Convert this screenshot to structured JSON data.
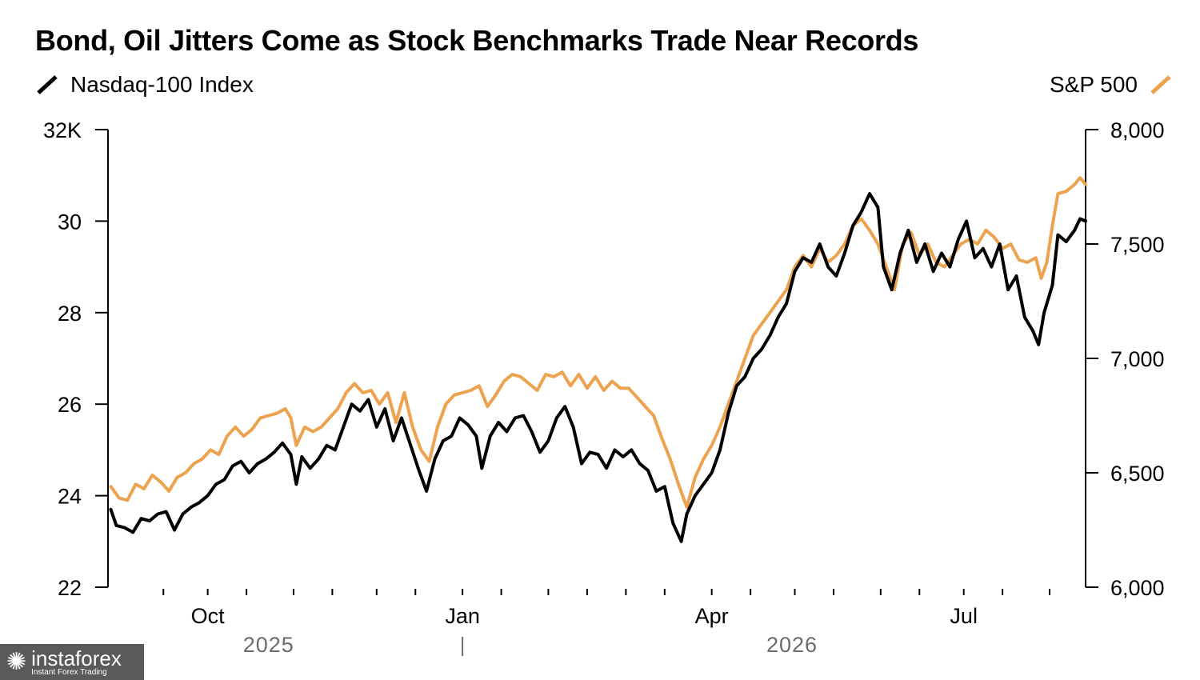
{
  "chart_data": {
    "type": "line",
    "title": "Bond, Oil Jitters Come as Stock Benchmarks Trade Near Records",
    "legend": {
      "placement": "top",
      "left_entry": "Nasdaq-100 Index",
      "right_entry": "S&P 500"
    },
    "x_ticks": [
      {
        "date": "2025-10-01",
        "label": "Oct"
      },
      {
        "date": "2026-01-01",
        "label": "Jan"
      },
      {
        "date": "2026-04-01",
        "label": "Apr"
      },
      {
        "date": "2026-07-01",
        "label": "Jul"
      }
    ],
    "x_minor_ticks": [
      "2025-09-15",
      "2025-10-01",
      "2025-10-15",
      "2025-11-01",
      "2025-11-15",
      "2025-12-01",
      "2025-12-15",
      "2026-01-01",
      "2026-01-15",
      "2026-02-01",
      "2026-02-15",
      "2026-03-01",
      "2026-03-15",
      "2026-04-01",
      "2026-04-15",
      "2026-05-01",
      "2026-05-15",
      "2026-06-01",
      "2026-06-15",
      "2026-07-01",
      "2026-07-15",
      "2026-08-01"
    ],
    "year_labels": [
      {
        "date": "2025-10-23",
        "label": "2025"
      },
      {
        "date": "2026-04-30",
        "label": "2026"
      }
    ],
    "year_divider": "2026-01-01",
    "xlim": [
      "2025-08-26",
      "2026-08-14"
    ],
    "left_axis": {
      "series": "Nasdaq-100 Index",
      "ylim": [
        22,
        32
      ],
      "ticks": [
        22,
        24,
        26,
        28,
        30,
        32
      ],
      "tick_labels": [
        "22",
        "24",
        "26",
        "28",
        "30",
        "32K"
      ],
      "unit": "thousands"
    },
    "right_axis": {
      "series": "S&P 500",
      "ylim": [
        6000,
        8000
      ],
      "ticks": [
        6000,
        6500,
        7000,
        7500,
        8000
      ],
      "tick_labels": [
        "6,000",
        "6,500",
        "7,000",
        "7,500",
        "8,000"
      ]
    },
    "grid": false,
    "series": [
      {
        "name": "Nasdaq-100 Index",
        "axis": "left",
        "color": "#000000",
        "points": [
          [
            "2025-08-27",
            23.7
          ],
          [
            "2025-08-29",
            23.35
          ],
          [
            "2025-09-01",
            23.3
          ],
          [
            "2025-09-04",
            23.2
          ],
          [
            "2025-09-07",
            23.5
          ],
          [
            "2025-09-10",
            23.45
          ],
          [
            "2025-09-13",
            23.6
          ],
          [
            "2025-09-16",
            23.65
          ],
          [
            "2025-09-19",
            23.25
          ],
          [
            "2025-09-22",
            23.6
          ],
          [
            "2025-09-25",
            23.75
          ],
          [
            "2025-09-28",
            23.85
          ],
          [
            "2025-10-01",
            24.0
          ],
          [
            "2025-10-04",
            24.25
          ],
          [
            "2025-10-07",
            24.35
          ],
          [
            "2025-10-10",
            24.65
          ],
          [
            "2025-10-13",
            24.75
          ],
          [
            "2025-10-16",
            24.5
          ],
          [
            "2025-10-19",
            24.7
          ],
          [
            "2025-10-22",
            24.8
          ],
          [
            "2025-10-25",
            24.95
          ],
          [
            "2025-10-28",
            25.15
          ],
          [
            "2025-10-31",
            24.9
          ],
          [
            "2025-11-02",
            24.25
          ],
          [
            "2025-11-04",
            24.85
          ],
          [
            "2025-11-07",
            24.6
          ],
          [
            "2025-11-10",
            24.8
          ],
          [
            "2025-11-13",
            25.1
          ],
          [
            "2025-11-16",
            25.0
          ],
          [
            "2025-11-19",
            25.5
          ],
          [
            "2025-11-22",
            26.0
          ],
          [
            "2025-11-25",
            25.85
          ],
          [
            "2025-11-28",
            26.1
          ],
          [
            "2025-12-01",
            25.5
          ],
          [
            "2025-12-04",
            25.9
          ],
          [
            "2025-12-07",
            25.2
          ],
          [
            "2025-12-10",
            25.7
          ],
          [
            "2025-12-13",
            25.15
          ],
          [
            "2025-12-16",
            24.6
          ],
          [
            "2025-12-19",
            24.1
          ],
          [
            "2025-12-22",
            24.8
          ],
          [
            "2025-12-25",
            25.2
          ],
          [
            "2025-12-28",
            25.3
          ],
          [
            "2025-12-31",
            25.7
          ],
          [
            "2026-01-03",
            25.55
          ],
          [
            "2026-01-06",
            25.3
          ],
          [
            "2026-01-08",
            24.6
          ],
          [
            "2026-01-11",
            25.3
          ],
          [
            "2026-01-14",
            25.6
          ],
          [
            "2026-01-17",
            25.4
          ],
          [
            "2026-01-20",
            25.7
          ],
          [
            "2026-01-23",
            25.75
          ],
          [
            "2026-01-26",
            25.4
          ],
          [
            "2026-01-29",
            24.95
          ],
          [
            "2026-02-01",
            25.2
          ],
          [
            "2026-02-04",
            25.7
          ],
          [
            "2026-02-07",
            25.95
          ],
          [
            "2026-02-10",
            25.5
          ],
          [
            "2026-02-13",
            24.7
          ],
          [
            "2026-02-16",
            24.95
          ],
          [
            "2026-02-19",
            24.9
          ],
          [
            "2026-02-22",
            24.6
          ],
          [
            "2026-02-25",
            25.0
          ],
          [
            "2026-02-28",
            24.85
          ],
          [
            "2026-03-03",
            25.0
          ],
          [
            "2026-03-06",
            24.7
          ],
          [
            "2026-03-09",
            24.55
          ],
          [
            "2026-03-12",
            24.1
          ],
          [
            "2026-03-15",
            24.2
          ],
          [
            "2026-03-18",
            23.4
          ],
          [
            "2026-03-21",
            23.0
          ],
          [
            "2026-03-23",
            23.6
          ],
          [
            "2026-03-26",
            24.0
          ],
          [
            "2026-03-29",
            24.25
          ],
          [
            "2026-04-01",
            24.5
          ],
          [
            "2026-04-04",
            25.0
          ],
          [
            "2026-04-07",
            25.8
          ],
          [
            "2026-04-10",
            26.4
          ],
          [
            "2026-04-13",
            26.6
          ],
          [
            "2026-04-16",
            27.0
          ],
          [
            "2026-04-19",
            27.2
          ],
          [
            "2026-04-22",
            27.5
          ],
          [
            "2026-04-25",
            27.9
          ],
          [
            "2026-04-28",
            28.2
          ],
          [
            "2026-05-01",
            28.9
          ],
          [
            "2026-05-04",
            29.2
          ],
          [
            "2026-05-07",
            29.1
          ],
          [
            "2026-05-10",
            29.5
          ],
          [
            "2026-05-13",
            29.0
          ],
          [
            "2026-05-16",
            28.8
          ],
          [
            "2026-05-19",
            29.3
          ],
          [
            "2026-05-22",
            29.9
          ],
          [
            "2026-05-25",
            30.2
          ],
          [
            "2026-05-28",
            30.6
          ],
          [
            "2026-05-31",
            30.3
          ],
          [
            "2026-06-02",
            29.0
          ],
          [
            "2026-06-05",
            28.5
          ],
          [
            "2026-06-08",
            29.3
          ],
          [
            "2026-06-11",
            29.8
          ],
          [
            "2026-06-14",
            29.1
          ],
          [
            "2026-06-17",
            29.5
          ],
          [
            "2026-06-20",
            28.9
          ],
          [
            "2026-06-23",
            29.3
          ],
          [
            "2026-06-26",
            29.0
          ],
          [
            "2026-06-29",
            29.6
          ],
          [
            "2026-07-02",
            30.0
          ],
          [
            "2026-07-05",
            29.2
          ],
          [
            "2026-07-08",
            29.4
          ],
          [
            "2026-07-11",
            29.0
          ],
          [
            "2026-07-14",
            29.5
          ],
          [
            "2026-07-17",
            28.5
          ],
          [
            "2026-07-20",
            28.8
          ],
          [
            "2026-07-23",
            27.9
          ],
          [
            "2026-07-26",
            27.6
          ],
          [
            "2026-07-28",
            27.3
          ],
          [
            "2026-07-30",
            28.0
          ],
          [
            "2026-08-02",
            28.6
          ],
          [
            "2026-08-04",
            29.7
          ],
          [
            "2026-08-07",
            29.55
          ],
          [
            "2026-08-10",
            29.8
          ],
          [
            "2026-08-12",
            30.05
          ],
          [
            "2026-08-14",
            30.0
          ]
        ]
      },
      {
        "name": "S&P 500",
        "axis": "right",
        "color": "#ECA24F",
        "points": [
          [
            "2025-08-27",
            6440
          ],
          [
            "2025-08-30",
            6390
          ],
          [
            "2025-09-02",
            6380
          ],
          [
            "2025-09-05",
            6450
          ],
          [
            "2025-09-08",
            6430
          ],
          [
            "2025-09-11",
            6490
          ],
          [
            "2025-09-14",
            6460
          ],
          [
            "2025-09-17",
            6420
          ],
          [
            "2025-09-20",
            6480
          ],
          [
            "2025-09-23",
            6500
          ],
          [
            "2025-09-26",
            6540
          ],
          [
            "2025-09-29",
            6560
          ],
          [
            "2025-10-02",
            6600
          ],
          [
            "2025-10-05",
            6580
          ],
          [
            "2025-10-08",
            6660
          ],
          [
            "2025-10-11",
            6700
          ],
          [
            "2025-10-14",
            6660
          ],
          [
            "2025-10-17",
            6690
          ],
          [
            "2025-10-20",
            6740
          ],
          [
            "2025-10-23",
            6750
          ],
          [
            "2025-10-26",
            6760
          ],
          [
            "2025-10-29",
            6780
          ],
          [
            "2025-10-31",
            6740
          ],
          [
            "2025-11-02",
            6620
          ],
          [
            "2025-11-05",
            6700
          ],
          [
            "2025-11-08",
            6680
          ],
          [
            "2025-11-11",
            6700
          ],
          [
            "2025-11-14",
            6740
          ],
          [
            "2025-11-17",
            6780
          ],
          [
            "2025-11-20",
            6850
          ],
          [
            "2025-11-23",
            6890
          ],
          [
            "2025-11-26",
            6850
          ],
          [
            "2025-11-29",
            6860
          ],
          [
            "2025-12-02",
            6800
          ],
          [
            "2025-12-05",
            6850
          ],
          [
            "2025-12-08",
            6720
          ],
          [
            "2025-12-11",
            6850
          ],
          [
            "2025-12-14",
            6700
          ],
          [
            "2025-12-17",
            6600
          ],
          [
            "2025-12-20",
            6550
          ],
          [
            "2025-12-23",
            6700
          ],
          [
            "2025-12-26",
            6800
          ],
          [
            "2025-12-29",
            6840
          ],
          [
            "2026-01-01",
            6850
          ],
          [
            "2026-01-04",
            6860
          ],
          [
            "2026-01-07",
            6880
          ],
          [
            "2026-01-10",
            6790
          ],
          [
            "2026-01-13",
            6840
          ],
          [
            "2026-01-16",
            6900
          ],
          [
            "2026-01-19",
            6930
          ],
          [
            "2026-01-22",
            6920
          ],
          [
            "2026-01-25",
            6890
          ],
          [
            "2026-01-28",
            6860
          ],
          [
            "2026-01-31",
            6930
          ],
          [
            "2026-02-03",
            6920
          ],
          [
            "2026-02-06",
            6940
          ],
          [
            "2026-02-09",
            6880
          ],
          [
            "2026-02-12",
            6930
          ],
          [
            "2026-02-15",
            6870
          ],
          [
            "2026-02-18",
            6920
          ],
          [
            "2026-02-21",
            6860
          ],
          [
            "2026-02-24",
            6900
          ],
          [
            "2026-02-27",
            6870
          ],
          [
            "2026-03-02",
            6870
          ],
          [
            "2026-03-05",
            6830
          ],
          [
            "2026-03-08",
            6790
          ],
          [
            "2026-03-11",
            6750
          ],
          [
            "2026-03-14",
            6650
          ],
          [
            "2026-03-17",
            6560
          ],
          [
            "2026-03-20",
            6450
          ],
          [
            "2026-03-23",
            6350
          ],
          [
            "2026-03-26",
            6480
          ],
          [
            "2026-03-29",
            6560
          ],
          [
            "2026-04-01",
            6620
          ],
          [
            "2026-04-04",
            6700
          ],
          [
            "2026-04-07",
            6800
          ],
          [
            "2026-04-10",
            6900
          ],
          [
            "2026-04-13",
            7000
          ],
          [
            "2026-04-16",
            7100
          ],
          [
            "2026-04-19",
            7150
          ],
          [
            "2026-04-22",
            7200
          ],
          [
            "2026-04-25",
            7250
          ],
          [
            "2026-04-28",
            7300
          ],
          [
            "2026-05-01",
            7400
          ],
          [
            "2026-05-04",
            7450
          ],
          [
            "2026-05-07",
            7400
          ],
          [
            "2026-05-10",
            7480
          ],
          [
            "2026-05-13",
            7420
          ],
          [
            "2026-05-16",
            7450
          ],
          [
            "2026-05-19",
            7500
          ],
          [
            "2026-05-22",
            7580
          ],
          [
            "2026-05-25",
            7610
          ],
          [
            "2026-05-28",
            7560
          ],
          [
            "2026-05-31",
            7500
          ],
          [
            "2026-06-03",
            7400
          ],
          [
            "2026-06-06",
            7300
          ],
          [
            "2026-06-09",
            7500
          ],
          [
            "2026-06-12",
            7550
          ],
          [
            "2026-06-15",
            7450
          ],
          [
            "2026-06-18",
            7500
          ],
          [
            "2026-06-21",
            7420
          ],
          [
            "2026-06-24",
            7400
          ],
          [
            "2026-06-27",
            7450
          ],
          [
            "2026-06-30",
            7500
          ],
          [
            "2026-07-03",
            7520
          ],
          [
            "2026-07-06",
            7500
          ],
          [
            "2026-07-09",
            7560
          ],
          [
            "2026-07-12",
            7530
          ],
          [
            "2026-07-15",
            7480
          ],
          [
            "2026-07-18",
            7500
          ],
          [
            "2026-07-21",
            7430
          ],
          [
            "2026-07-24",
            7420
          ],
          [
            "2026-07-27",
            7440
          ],
          [
            "2026-07-29",
            7350
          ],
          [
            "2026-07-31",
            7420
          ],
          [
            "2026-08-02",
            7580
          ],
          [
            "2026-08-04",
            7720
          ],
          [
            "2026-08-07",
            7730
          ],
          [
            "2026-08-10",
            7760
          ],
          [
            "2026-08-12",
            7790
          ],
          [
            "2026-08-14",
            7760
          ]
        ]
      }
    ]
  },
  "watermark": {
    "name": "instaforex",
    "tagline": "Instant Forex Trading",
    "icon": "gear-icon"
  }
}
